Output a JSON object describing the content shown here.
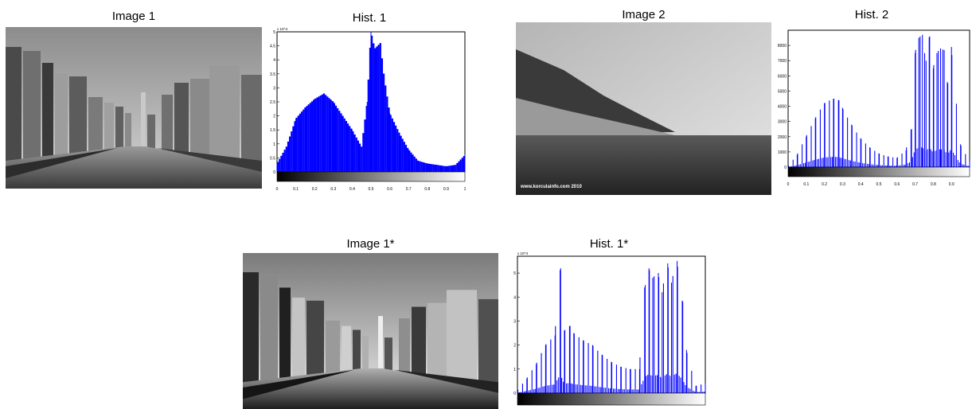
{
  "titles": {
    "image1": "Image 1",
    "hist1": "Hist. 1",
    "image2": "Image 2",
    "hist2": "Hist. 2",
    "image1star": "Image 1*",
    "hist1star": "Hist. 1*"
  },
  "image2_watermark": "www.korculainfo.com 2010",
  "colors": {
    "bars": "#0000ff",
    "axis": "#000000"
  },
  "chart_data": [
    {
      "type": "area",
      "title": "Hist. 1",
      "xlabel": "",
      "ylabel": "",
      "y_scale_label": "x 10^4",
      "xlim": [
        0,
        1
      ],
      "ylim": [
        0,
        5
      ],
      "xticks": [
        "0",
        "0.1",
        "0.2",
        "0.3",
        "0.4",
        "0.5",
        "0.6",
        "0.7",
        "0.8",
        "0.9",
        "1"
      ],
      "yticks": [
        "0",
        "0.5",
        "1",
        "1.5",
        "2",
        "2.5",
        "3",
        "3.5",
        "4",
        "4.5",
        "5"
      ],
      "x": [
        0,
        0.05,
        0.1,
        0.15,
        0.2,
        0.25,
        0.3,
        0.35,
        0.4,
        0.45,
        0.48,
        0.5,
        0.52,
        0.55,
        0.57,
        0.6,
        0.65,
        0.7,
        0.75,
        0.8,
        0.85,
        0.9,
        0.95,
        1.0
      ],
      "values": [
        0.3,
        0.9,
        1.9,
        2.3,
        2.6,
        2.8,
        2.5,
        2.0,
        1.5,
        0.9,
        2.5,
        5.0,
        4.4,
        4.6,
        3.4,
        2.1,
        1.4,
        0.8,
        0.4,
        0.3,
        0.25,
        0.2,
        0.25,
        0.6
      ],
      "grid": false
    },
    {
      "type": "bar",
      "title": "Hist. 2",
      "xlabel": "",
      "ylabel": "",
      "xlim": [
        0,
        1
      ],
      "ylim": [
        0,
        9000
      ],
      "xticks": [
        "0",
        "0.1",
        "0.2",
        "0.3",
        "0.4",
        "0.5",
        "0.6",
        "0.7",
        "0.8",
        "0.9"
      ],
      "yticks": [
        "0",
        "1000",
        "2000",
        "3000",
        "4000",
        "5000",
        "6000",
        "7000",
        "8000"
      ],
      "x": [
        0,
        0.05,
        0.1,
        0.15,
        0.2,
        0.25,
        0.28,
        0.3,
        0.35,
        0.4,
        0.45,
        0.5,
        0.55,
        0.6,
        0.65,
        0.68,
        0.7,
        0.72,
        0.74,
        0.76,
        0.78,
        0.8,
        0.82,
        0.84,
        0.86,
        0.88,
        0.9,
        0.95,
        1.0
      ],
      "values": [
        50,
        800,
        2000,
        3200,
        4200,
        4500,
        4400,
        3900,
        2800,
        1900,
        1300,
        900,
        700,
        600,
        1100,
        2500,
        7500,
        8500,
        8700,
        7000,
        8600,
        6500,
        7500,
        7800,
        7700,
        5500,
        7900,
        1500,
        400
      ],
      "grid": false
    },
    {
      "type": "bar",
      "title": "Hist. 1*",
      "xlabel": "",
      "ylabel": "",
      "y_scale_label": "x 10^4",
      "xlim": [
        0,
        1
      ],
      "ylim": [
        0,
        5.7
      ],
      "xticks": [
        "0",
        "0.1",
        "0.2",
        "0.3",
        "0.4",
        "0.5",
        "0.6",
        "0.7",
        "0.8",
        "0.9",
        "1"
      ],
      "yticks": [
        "0",
        "1",
        "2",
        "3",
        "4",
        "5"
      ],
      "x": [
        0,
        0.05,
        0.1,
        0.15,
        0.2,
        0.23,
        0.25,
        0.28,
        0.3,
        0.35,
        0.4,
        0.45,
        0.5,
        0.55,
        0.6,
        0.65,
        0.68,
        0.7,
        0.72,
        0.75,
        0.77,
        0.8,
        0.82,
        0.85,
        0.88,
        0.9,
        0.95,
        1.0
      ],
      "values": [
        0.1,
        0.6,
        1.2,
        2.0,
        2.4,
        5.2,
        2.6,
        2.8,
        2.5,
        2.2,
        2.0,
        1.6,
        1.3,
        1.1,
        1.0,
        1.0,
        4.5,
        5.2,
        4.8,
        5.0,
        4.2,
        5.4,
        4.6,
        5.5,
        3.8,
        1.8,
        0.3,
        0.4
      ],
      "grid": false
    }
  ]
}
